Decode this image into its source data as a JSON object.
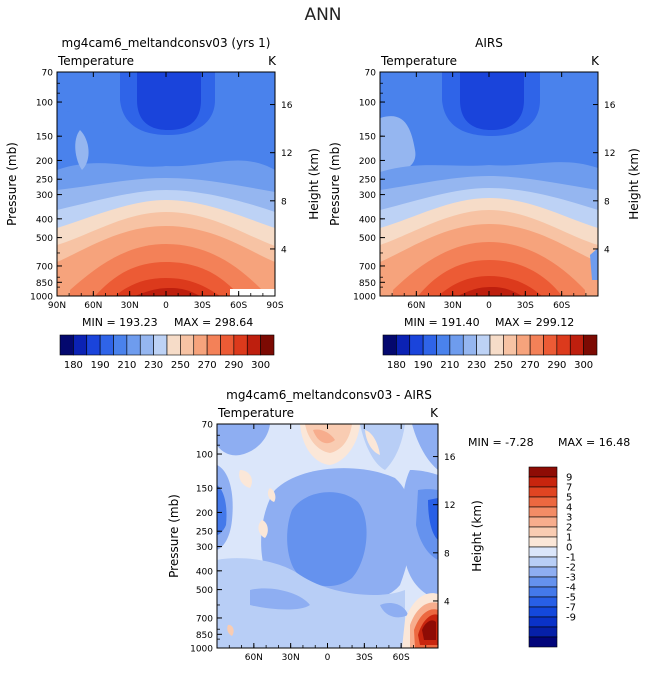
{
  "figure_title": "ANN",
  "colors": {
    "abs_scale": [
      "#04086e",
      "#0b22b4",
      "#1a44db",
      "#2f64e8",
      "#4a82ec",
      "#6e9cee",
      "#95b6f0",
      "#bdd2f5",
      "#f6dcc8",
      "#f7c3a4",
      "#f6a37c",
      "#f38158",
      "#ec5b35",
      "#dc3a1c",
      "#be1f0e",
      "#7c0a03"
    ],
    "diff_scale": [
      "#02057a",
      "#0620a8",
      "#0a32c8",
      "#1448dc",
      "#285fe6",
      "#4479ea",
      "#6592ee",
      "#8eaef2",
      "#b8cef6",
      "#dbe6fa",
      "#fbe7d8",
      "#f9ccb2",
      "#f7ad8d",
      "#f38c66",
      "#ec6840",
      "#e04522",
      "#c8250e",
      "#8e0c05"
    ]
  },
  "chart_data": [
    {
      "type": "heatmap",
      "id": "model",
      "title": "mg4cam6_meltandconsv03 (yrs 1)",
      "subtitle_left": "Temperature",
      "subtitle_right": "K",
      "ylabel": "Pressure (mb)",
      "ylabel_right": "Height (km)",
      "x_ticks": [
        "90N",
        "60N",
        "30N",
        "0",
        "30S",
        "60S",
        "90S"
      ],
      "y_ticks": [
        "70",
        "100",
        "150",
        "200",
        "250",
        "300",
        "400",
        "500",
        "700",
        "850",
        "1000"
      ],
      "height_ticks": [
        "16",
        "12",
        "8",
        "4"
      ],
      "min_label": "MIN = 193.23",
      "max_label": "MAX = 298.64",
      "colorbar_labels": [
        "180",
        "190",
        "210",
        "230",
        "250",
        "270",
        "290",
        "300"
      ]
    },
    {
      "type": "heatmap",
      "id": "obs",
      "title": "AIRS",
      "subtitle_left": "Temperature",
      "subtitle_right": "K",
      "ylabel": "Pressure (mb)",
      "ylabel_right": "Height (km)",
      "x_ticks": [
        "60N",
        "30N",
        "0",
        "30S",
        "60S"
      ],
      "y_ticks": [
        "70",
        "100",
        "150",
        "200",
        "250",
        "300",
        "400",
        "500",
        "700",
        "850",
        "1000"
      ],
      "height_ticks": [
        "16",
        "12",
        "8",
        "4"
      ],
      "min_label": "MIN = 191.40",
      "max_label": "MAX = 299.12",
      "colorbar_labels": [
        "180",
        "190",
        "210",
        "230",
        "250",
        "270",
        "290",
        "300"
      ]
    },
    {
      "type": "heatmap",
      "id": "diff",
      "title": "mg4cam6_meltandconsv03 - AIRS",
      "subtitle_left": "Temperature",
      "subtitle_right": "K",
      "ylabel": "Pressure (mb)",
      "ylabel_right": "Height (km)",
      "x_ticks": [
        "60N",
        "30N",
        "0",
        "30S",
        "60S"
      ],
      "y_ticks": [
        "70",
        "100",
        "150",
        "200",
        "250",
        "300",
        "400",
        "500",
        "700",
        "850",
        "1000"
      ],
      "height_ticks": [
        "16",
        "12",
        "8",
        "4"
      ],
      "min_label": "MIN = -7.28",
      "max_label": "MAX = 16.48",
      "colorbar_labels": [
        "9",
        "7",
        "5",
        "4",
        "3",
        "2",
        "1",
        "0",
        "-1",
        "-2",
        "-3",
        "-4",
        "-5",
        "-7",
        "-9"
      ]
    }
  ]
}
